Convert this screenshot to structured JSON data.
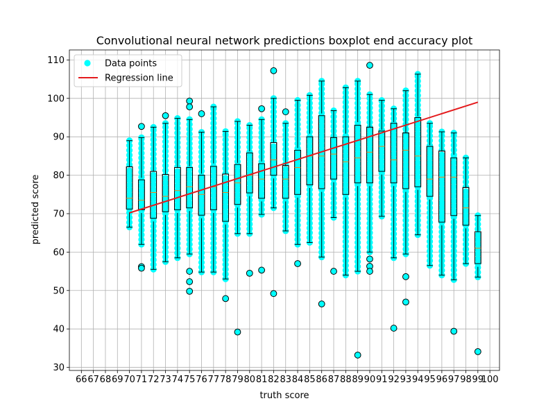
{
  "chart_data": {
    "type": "scatter",
    "title": "Convolutional neural network predictions boxplot end accuracy plot",
    "xlabel": "truth score",
    "ylabel": "predicted score",
    "xlim": [
      65,
      100.8
    ],
    "ylim": [
      29.2,
      112.6
    ],
    "x_ticks": [
      66,
      67,
      68,
      69,
      70,
      71,
      72,
      73,
      74,
      75,
      76,
      77,
      78,
      79,
      80,
      81,
      82,
      83,
      84,
      85,
      86,
      87,
      88,
      89,
      90,
      91,
      92,
      93,
      94,
      95,
      96,
      97,
      98,
      99,
      100
    ],
    "y_ticks": [
      30,
      40,
      50,
      60,
      70,
      80,
      90,
      100,
      110
    ],
    "grid": true,
    "legend_position": "upper-left",
    "legend": [
      {
        "label": "Data points",
        "marker": "circle",
        "color": "#00ffff"
      },
      {
        "label": "Regression line",
        "marker": "line",
        "color": "#e41a1c"
      }
    ],
    "regression_line": {
      "x": [
        70,
        99
      ],
      "y": [
        70.2,
        99.0
      ],
      "color": "#e41a1c"
    },
    "scatter_color": "#00ffff",
    "boxplots": [
      {
        "x": 70,
        "whislo": 66.5,
        "q1": 71.2,
        "med": 74.0,
        "q3": 82.2,
        "whishi": 89.0,
        "fliers": []
      },
      {
        "x": 71,
        "whislo": 62.0,
        "q1": 71.0,
        "med": 73.5,
        "q3": 78.8,
        "whishi": 89.8,
        "fliers": [
          92.7,
          56.2,
          55.8
        ]
      },
      {
        "x": 72,
        "whislo": 55.5,
        "q1": 68.8,
        "med": 75.5,
        "q3": 81.0,
        "whishi": 92.5,
        "fliers": []
      },
      {
        "x": 73,
        "whislo": 57.5,
        "q1": 70.5,
        "med": 74.5,
        "q3": 80.2,
        "whishi": 93.5,
        "fliers": [
          95.5
        ]
      },
      {
        "x": 74,
        "whislo": 58.5,
        "q1": 71.0,
        "med": 76.0,
        "q3": 82.0,
        "whishi": 94.8,
        "fliers": []
      },
      {
        "x": 75,
        "whislo": 59.5,
        "q1": 71.5,
        "med": 77.0,
        "q3": 82.0,
        "whishi": 94.5,
        "fliers": [
          99.3,
          97.8,
          55.0,
          52.3,
          49.8
        ]
      },
      {
        "x": 76,
        "whislo": 54.8,
        "q1": 69.6,
        "med": 75.0,
        "q3": 80.0,
        "whishi": 91.2,
        "fliers": [
          96.0
        ]
      },
      {
        "x": 77,
        "whislo": 54.8,
        "q1": 71.0,
        "med": 77.0,
        "q3": 82.3,
        "whishi": 97.8,
        "fliers": []
      },
      {
        "x": 78,
        "whislo": 53.0,
        "q1": 68.0,
        "med": 75.5,
        "q3": 80.3,
        "whishi": 91.4,
        "fliers": [
          47.9
        ]
      },
      {
        "x": 79,
        "whislo": 64.8,
        "q1": 72.4,
        "med": 78.0,
        "q3": 82.8,
        "whishi": 94.0,
        "fliers": [
          39.2
        ]
      },
      {
        "x": 80,
        "whislo": 64.8,
        "q1": 75.4,
        "med": 80.0,
        "q3": 85.8,
        "whishi": 93.0,
        "fliers": [
          54.5
        ]
      },
      {
        "x": 81,
        "whislo": 69.8,
        "q1": 74.0,
        "med": 79.0,
        "q3": 83.0,
        "whishi": 94.5,
        "fliers": [
          97.3,
          55.3
        ]
      },
      {
        "x": 82,
        "whislo": 71.5,
        "q1": 80.0,
        "med": 84.0,
        "q3": 88.5,
        "whishi": 100.0,
        "fliers": [
          107.2,
          49.2
        ]
      },
      {
        "x": 83,
        "whislo": 65.5,
        "q1": 74.0,
        "med": 79.0,
        "q3": 82.5,
        "whishi": 93.5,
        "fliers": [
          96.5
        ]
      },
      {
        "x": 84,
        "whislo": 62.0,
        "q1": 75.0,
        "med": 82.0,
        "q3": 86.5,
        "whishi": 99.5,
        "fliers": [
          57.0
        ]
      },
      {
        "x": 85,
        "whislo": 62.5,
        "q1": 77.5,
        "med": 85.0,
        "q3": 90.0,
        "whishi": 100.8,
        "fliers": []
      },
      {
        "x": 86,
        "whislo": 58.7,
        "q1": 76.5,
        "med": 85.0,
        "q3": 95.5,
        "whishi": 104.5,
        "fliers": [
          46.5
        ]
      },
      {
        "x": 87,
        "whislo": 69.0,
        "q1": 79.0,
        "med": 85.5,
        "q3": 89.8,
        "whishi": 96.8,
        "fliers": [
          55.0
        ]
      },
      {
        "x": 88,
        "whislo": 54.0,
        "q1": 75.0,
        "med": 83.5,
        "q3": 90.0,
        "whishi": 102.8,
        "fliers": []
      },
      {
        "x": 89,
        "whislo": 55.0,
        "q1": 78.0,
        "med": 84.5,
        "q3": 93.0,
        "whishi": 104.5,
        "fliers": [
          33.2
        ]
      },
      {
        "x": 90,
        "whislo": 60.0,
        "q1": 78.0,
        "med": 86.0,
        "q3": 92.5,
        "whishi": 101.0,
        "fliers": [
          108.6,
          58.2,
          56.3,
          55.0
        ]
      },
      {
        "x": 91,
        "whislo": 69.3,
        "q1": 81.0,
        "med": 87.5,
        "q3": 91.5,
        "whishi": 99.5,
        "fliers": []
      },
      {
        "x": 92,
        "whislo": 58.5,
        "q1": 78.0,
        "med": 84.0,
        "q3": 93.5,
        "whishi": 97.3,
        "fliers": [
          40.2
        ]
      },
      {
        "x": 93,
        "whislo": 59.5,
        "q1": 76.5,
        "med": 86.5,
        "q3": 91.0,
        "whishi": 102.0,
        "fliers": [
          53.6,
          47.0
        ]
      },
      {
        "x": 94,
        "whislo": 64.5,
        "q1": 77.0,
        "med": 85.0,
        "q3": 95.0,
        "whishi": 106.3,
        "fliers": []
      },
      {
        "x": 95,
        "whislo": 56.5,
        "q1": 74.5,
        "med": 79.0,
        "q3": 87.5,
        "whishi": 93.5,
        "fliers": []
      },
      {
        "x": 96,
        "whislo": 54.0,
        "q1": 67.8,
        "med": 79.5,
        "q3": 86.3,
        "whishi": 91.3,
        "fliers": []
      },
      {
        "x": 97,
        "whislo": 52.8,
        "q1": 69.5,
        "med": 79.5,
        "q3": 84.5,
        "whishi": 91.0,
        "fliers": [
          39.4
        ]
      },
      {
        "x": 98,
        "whislo": 57.0,
        "q1": 67.0,
        "med": 71.5,
        "q3": 76.8,
        "whishi": 84.5,
        "fliers": []
      },
      {
        "x": 99,
        "whislo": 53.5,
        "q1": 57.0,
        "med": 61.0,
        "q3": 65.3,
        "whishi": 69.5,
        "fliers": [
          34.1
        ]
      }
    ]
  }
}
